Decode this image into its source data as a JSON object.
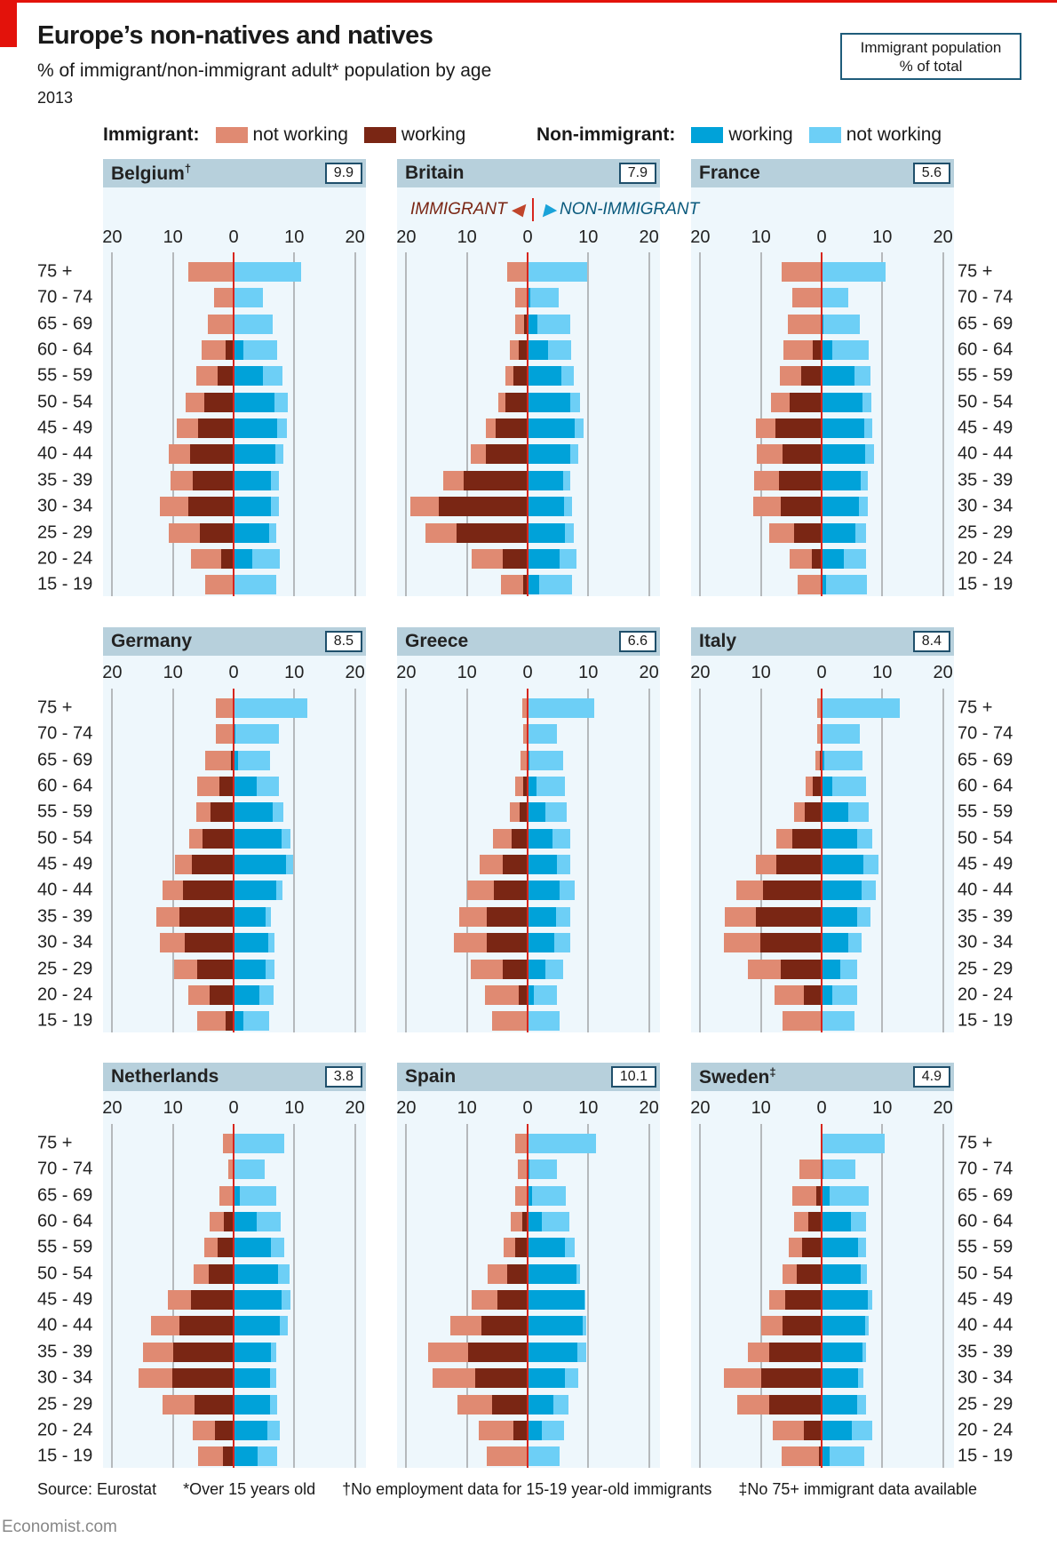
{
  "title": "Europe’s non-natives and natives",
  "subtitle": "% of immigrant/non-immigrant adult* population by age",
  "year": "2013",
  "population_box": {
    "line1": "Immigrant population",
    "line2": "% of total"
  },
  "legend": {
    "immigrant_label": "Immigrant:",
    "non_immigrant_label": "Non-immigrant:",
    "items": [
      {
        "label": "not working",
        "color": "#e08a72"
      },
      {
        "label": "working",
        "color": "#7a2614"
      },
      {
        "label": "working",
        "color": "#00a2d9"
      },
      {
        "label": "not working",
        "color": "#6dcff6"
      }
    ]
  },
  "annotation": {
    "left": "IMMIGRANT",
    "right": "NON-IMMIGRANT"
  },
  "footer": {
    "source": "Source: Eurostat",
    "note1": "*Over 15 years old",
    "note2": "†No employment data for 15-19 year-old immigrants",
    "note3": "‡No 75+ immigrant data available"
  },
  "brand": "Economist.com",
  "chart_data": {
    "type": "bar",
    "orientation": "horizontal population pyramid (small multiples)",
    "unit": "% of immigrant/non-immigrant adult population",
    "xlim": [
      -20,
      20
    ],
    "x_tick_labels": [
      "20",
      "10",
      "0",
      "10",
      "20"
    ],
    "grid": true,
    "legend_position": "top",
    "age_groups": [
      "75 +",
      "70 - 74",
      "65 - 69",
      "60 - 64",
      "55 - 59",
      "50 - 54",
      "45 - 49",
      "40 - 44",
      "35 - 39",
      "30 - 34",
      "25 - 29",
      "20 - 24",
      "15 - 19"
    ],
    "series_names": [
      "Immigrant: not working",
      "Immigrant: working",
      "Non-immigrant: working",
      "Non-immigrant: not working"
    ],
    "countries": [
      {
        "name": "Belgium",
        "mark": "†",
        "immigrant_pct": "9.9",
        "imm_not_working": [
          7.4,
          3.2,
          4.3,
          4.0,
          3.5,
          3.0,
          3.4,
          3.5,
          3.7,
          4.8,
          5.1,
          5.0,
          4.7
        ],
        "imm_working": [
          0,
          0,
          0,
          1.3,
          2.7,
          4.9,
          5.9,
          7.2,
          6.7,
          7.4,
          5.6,
          2.0,
          0
        ],
        "non_working": [
          0,
          0,
          0,
          1.6,
          4.9,
          6.8,
          7.2,
          6.9,
          6.2,
          6.2,
          5.8,
          3.1,
          0
        ],
        "non_not_working": [
          11.1,
          4.8,
          6.4,
          5.6,
          3.2,
          2.1,
          1.6,
          1.3,
          1.2,
          1.2,
          1.3,
          4.5,
          7.0
        ]
      },
      {
        "name": "Britain",
        "mark": "",
        "immigrant_pct": "7.9",
        "imm_not_working": [
          3.4,
          2.1,
          1.5,
          1.6,
          1.4,
          1.2,
          1.6,
          2.5,
          3.3,
          4.6,
          5.1,
          5.1,
          3.7
        ],
        "imm_working": [
          0,
          0,
          0.6,
          1.4,
          2.3,
          3.7,
          5.3,
          6.9,
          10.6,
          14.7,
          11.7,
          4.1,
          0.7
        ],
        "non_working": [
          0,
          0.4,
          1.6,
          3.3,
          5.6,
          7.0,
          7.7,
          7.1,
          5.8,
          6.0,
          6.1,
          5.2,
          1.9
        ],
        "non_not_working": [
          9.8,
          4.7,
          5.4,
          3.9,
          2.0,
          1.7,
          1.5,
          1.3,
          1.2,
          1.3,
          1.5,
          2.8,
          5.4
        ]
      },
      {
        "name": "France",
        "mark": "",
        "immigrant_pct": "5.6",
        "imm_not_working": [
          6.6,
          4.9,
          5.6,
          4.9,
          3.5,
          3.0,
          3.3,
          4.3,
          4.2,
          4.6,
          4.0,
          3.6,
          3.9
        ],
        "imm_working": [
          0,
          0,
          0,
          1.4,
          3.4,
          5.3,
          7.6,
          6.4,
          7.0,
          6.7,
          4.6,
          1.6,
          0
        ],
        "non_working": [
          0,
          0,
          0.3,
          1.8,
          5.4,
          6.8,
          7.0,
          7.2,
          6.4,
          6.1,
          5.6,
          3.6,
          0.8
        ],
        "non_not_working": [
          10.6,
          4.4,
          6.0,
          6.0,
          2.6,
          1.4,
          1.3,
          1.4,
          1.2,
          1.5,
          1.7,
          3.7,
          6.6
        ]
      },
      {
        "name": "Germany",
        "mark": "",
        "immigrant_pct": "8.5",
        "imm_not_working": [
          3.0,
          3.0,
          4.3,
          3.6,
          2.4,
          2.2,
          2.8,
          3.3,
          3.8,
          4.0,
          3.8,
          3.4,
          4.7
        ],
        "imm_working": [
          0,
          0,
          0.4,
          2.4,
          3.8,
          5.1,
          6.9,
          8.4,
          8.9,
          8.1,
          6.0,
          4.0,
          1.3
        ],
        "non_working": [
          0,
          0.3,
          0.7,
          3.8,
          6.4,
          7.9,
          8.6,
          7.1,
          5.3,
          5.7,
          5.3,
          4.3,
          1.6
        ],
        "non_not_working": [
          12.1,
          7.1,
          5.3,
          3.6,
          1.8,
          1.4,
          1.2,
          0.9,
          0.9,
          1.0,
          1.4,
          2.3,
          4.2
        ]
      },
      {
        "name": "Greece",
        "mark": "",
        "immigrant_pct": "6.6",
        "imm_not_working": [
          0.9,
          0.7,
          1.1,
          1.3,
          1.7,
          3.1,
          3.8,
          4.4,
          4.5,
          5.4,
          5.3,
          5.7,
          5.9
        ],
        "imm_working": [
          0,
          0,
          0,
          0.8,
          1.3,
          2.6,
          4.1,
          5.6,
          6.8,
          6.8,
          4.1,
          1.4,
          0
        ],
        "non_working": [
          0,
          0,
          0.3,
          1.4,
          3.0,
          4.1,
          4.8,
          5.2,
          4.7,
          4.4,
          2.9,
          1.0,
          0
        ],
        "non_not_working": [
          11.0,
          4.8,
          5.5,
          4.7,
          3.4,
          3.0,
          2.3,
          2.5,
          2.3,
          2.6,
          2.9,
          3.8,
          5.2
        ]
      },
      {
        "name": "Italy",
        "mark": "",
        "immigrant_pct": "8.4",
        "imm_not_working": [
          0.7,
          0.7,
          0.7,
          1.2,
          1.8,
          2.5,
          3.5,
          4.5,
          5.1,
          6.0,
          5.4,
          4.9,
          6.4
        ],
        "imm_working": [
          0,
          0,
          0.3,
          1.4,
          2.8,
          4.9,
          7.4,
          9.6,
          10.8,
          10.1,
          6.7,
          2.9,
          0
        ],
        "non_working": [
          0,
          0,
          0.4,
          1.8,
          4.4,
          5.9,
          6.9,
          6.6,
          5.9,
          4.4,
          3.1,
          1.7,
          0
        ],
        "non_not_working": [
          12.9,
          6.3,
          6.4,
          5.5,
          3.3,
          2.5,
          2.4,
          2.4,
          2.2,
          2.2,
          2.8,
          4.2,
          5.4
        ]
      },
      {
        "name": "Netherlands",
        "mark": "",
        "immigrant_pct": "3.8",
        "imm_not_working": [
          1.7,
          0.9,
          2.2,
          2.4,
          2.2,
          2.5,
          3.7,
          4.6,
          5.1,
          5.5,
          5.3,
          3.6,
          4.0
        ],
        "imm_working": [
          0,
          0,
          0.2,
          1.6,
          2.7,
          4.1,
          7.1,
          9.0,
          9.9,
          10.1,
          6.4,
          3.1,
          1.8
        ],
        "non_working": [
          0,
          0,
          1.0,
          3.8,
          6.1,
          7.3,
          7.9,
          7.6,
          6.1,
          6.0,
          6.0,
          5.6,
          3.9
        ],
        "non_not_working": [
          8.4,
          5.1,
          6.1,
          4.0,
          2.2,
          1.9,
          1.4,
          1.3,
          1.0,
          1.0,
          1.2,
          2.0,
          3.3
        ]
      },
      {
        "name": "Spain",
        "mark": "",
        "immigrant_pct": "10.1",
        "imm_not_working": [
          2.0,
          1.6,
          2.0,
          1.9,
          2.0,
          3.3,
          4.2,
          5.1,
          6.6,
          6.9,
          5.8,
          5.7,
          6.8
        ],
        "imm_working": [
          0,
          0,
          0,
          0.9,
          2.0,
          3.3,
          5.0,
          7.6,
          9.8,
          8.7,
          5.8,
          2.3,
          0
        ],
        "non_working": [
          0,
          0.3,
          0.8,
          2.4,
          6.2,
          8.1,
          9.3,
          9.1,
          8.2,
          6.2,
          4.3,
          2.3,
          0
        ],
        "non_not_working": [
          11.3,
          4.5,
          5.5,
          4.5,
          1.5,
          0.6,
          0.1,
          0.5,
          1.4,
          2.1,
          2.4,
          3.7,
          5.3
        ]
      },
      {
        "name": "Sweden",
        "mark": "‡",
        "immigrant_pct": "4.9",
        "imm_not_working": [
          0,
          3.7,
          3.9,
          2.4,
          2.2,
          2.3,
          2.7,
          3.5,
          3.6,
          6.2,
          5.3,
          5.2,
          6.2
        ],
        "imm_working": [
          0,
          0,
          0.9,
          2.2,
          3.2,
          4.1,
          6.0,
          6.4,
          8.6,
          9.9,
          8.6,
          2.9,
          0.4
        ],
        "non_working": [
          0,
          0.3,
          1.3,
          4.9,
          6.0,
          6.4,
          7.6,
          7.2,
          6.7,
          6.0,
          5.9,
          5.0,
          1.3
        ],
        "non_not_working": [
          10.4,
          5.3,
          6.5,
          2.4,
          1.3,
          1.0,
          0.8,
          0.6,
          0.6,
          0.9,
          1.4,
          3.4,
          5.7
        ]
      }
    ]
  }
}
